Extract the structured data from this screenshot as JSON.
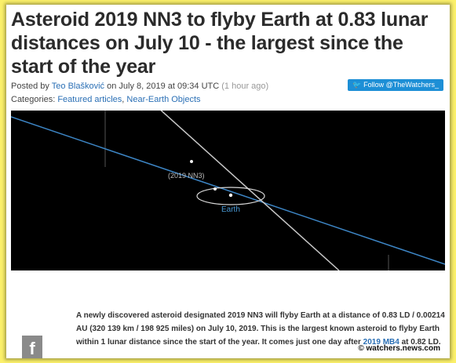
{
  "article": {
    "title": "Asteroid 2019 NN3 to flyby Earth at 0.83 lunar distances on July 10 - the largest since the start of the year",
    "meta": {
      "posted_by_prefix": "Posted by",
      "author": "Teo Blašković",
      "date_text": "on July 8, 2019 at 09:34 UTC",
      "ago": "(1 hour ago)"
    },
    "categories": {
      "prefix": "Categories:",
      "items": [
        "Featured articles",
        "Near-Earth Objects"
      ],
      "separator": ","
    },
    "follow_button": "Follow @TheWatchers_",
    "orbit_diagram": {
      "asteroid_label": "(2019 NN3)",
      "earth_label": "Earth",
      "colors": {
        "background": "#000000",
        "earth_orbit": "#3d86c6",
        "asteroid_path": "#c8c8c8"
      }
    },
    "body": {
      "text_before_link": "A newly discovered asteroid designated 2019 NN3 will flyby Earth at a distance of 0.83 LD / 0.00214 AU (320 139 km / 198 925 miles) on July 10, 2019. This is the largest known asteroid to flyby Earth within 1 lunar distance since the start of the year. It comes just one day after",
      "link": "2019 MB4",
      "text_after_link": "at 0.82 LD."
    },
    "share_icon": "facebook-icon",
    "watermark": "© watchers.news.com"
  },
  "colors": {
    "background": "#fbf06a",
    "link": "#2a6fb5",
    "follow": "#1d8fd6"
  }
}
